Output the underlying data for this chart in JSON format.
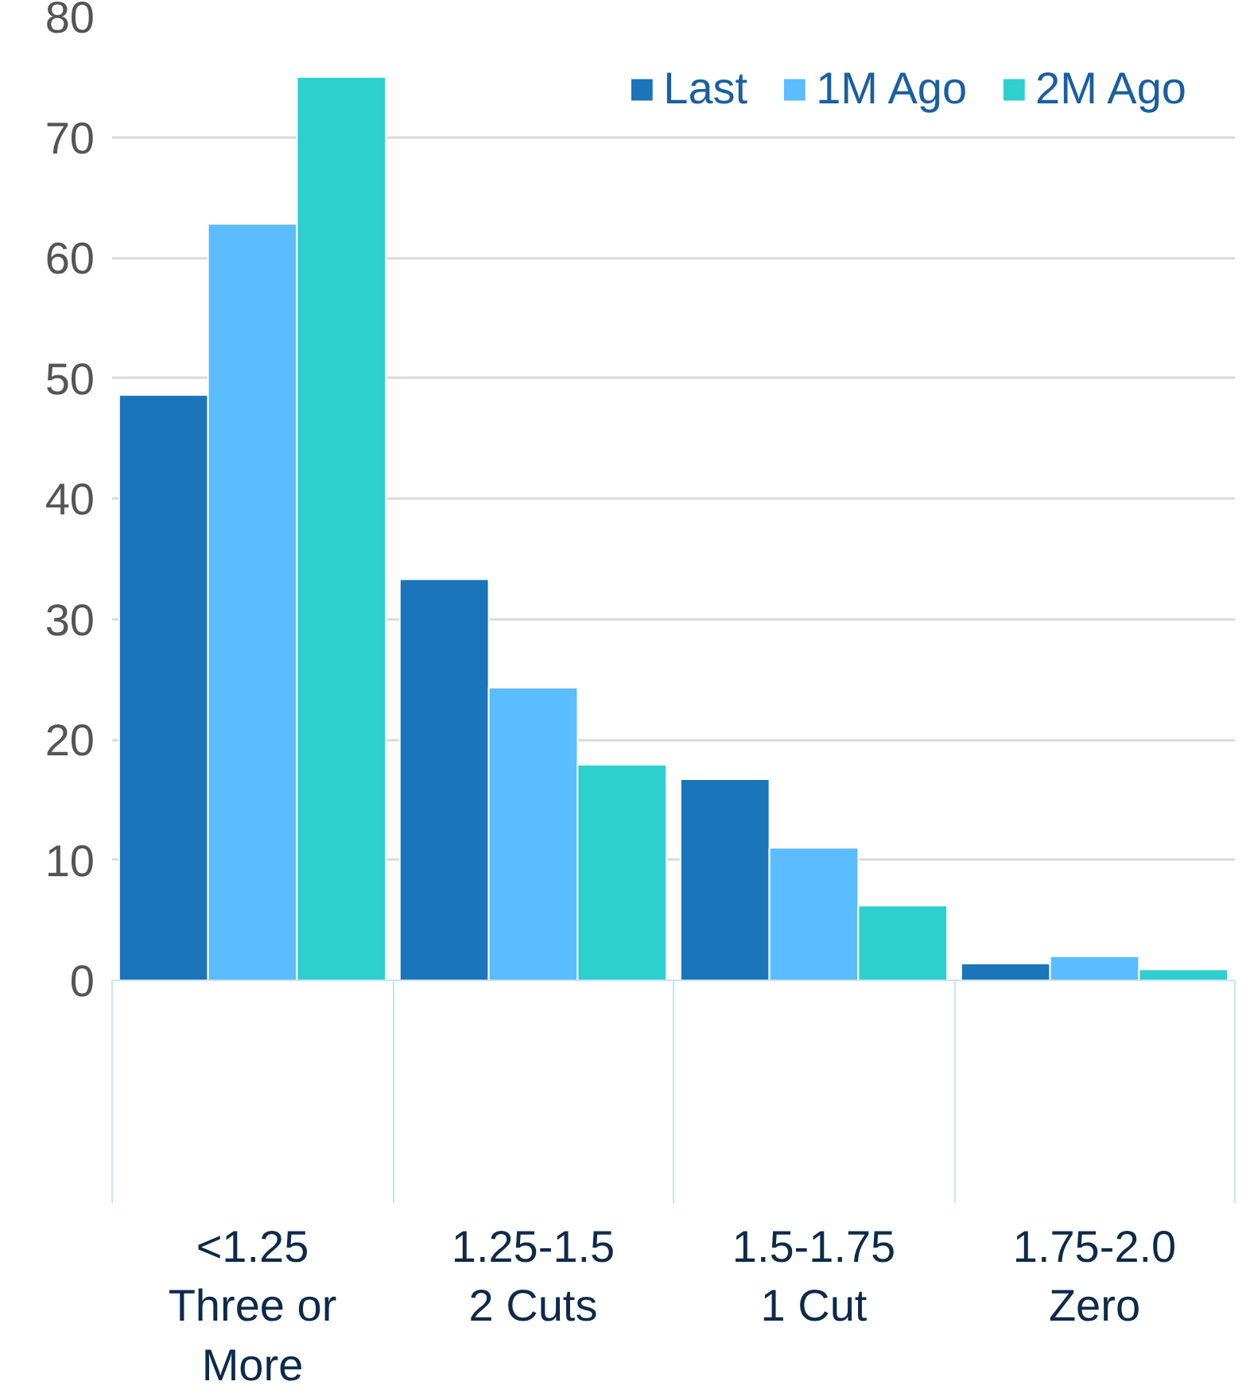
{
  "chart_data": {
    "type": "bar",
    "categories": [
      "<1.25\nThree or More",
      "1.25-1.5\n2 Cuts",
      "1.5-1.75\n1 Cut",
      "1.75-2.0\nZero"
    ],
    "series": [
      {
        "name": "Last",
        "color": "#1a75bb",
        "values": [
          48.6,
          33.3,
          16.7,
          1.4
        ]
      },
      {
        "name": "1M Ago",
        "color": "#5bbcff",
        "values": [
          62.8,
          24.3,
          11.0,
          2.0
        ]
      },
      {
        "name": "2M Ago",
        "color": "#2ecfcf",
        "values": [
          75.0,
          17.9,
          6.2,
          0.9
        ]
      }
    ],
    "ylim": [
      0,
      80
    ],
    "yticks": [
      0,
      10,
      20,
      30,
      40,
      50,
      60,
      70,
      80
    ],
    "grid": "y",
    "legend": "top right"
  }
}
